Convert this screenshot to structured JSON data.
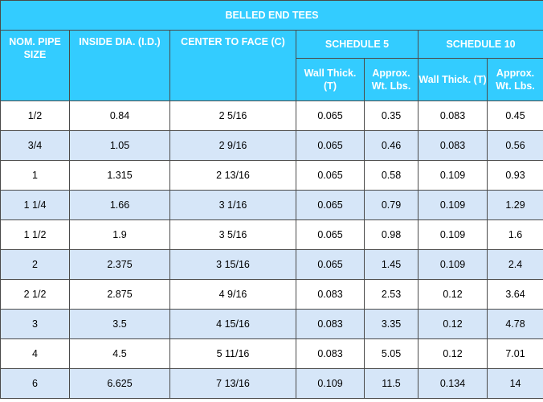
{
  "title": "BELLED END TEES",
  "headers": {
    "nom_pipe_size": "NOM. PIPE SIZE",
    "inside_dia": "INSIDE DIA. (I.D.)",
    "center_to_face": "CENTER TO FACE (C)",
    "schedule5": "SCHEDULE 5",
    "schedule10": "SCHEDULE 10",
    "wall_thick": "Wall Thick. (T)",
    "approx_wt": "Approx. Wt. Lbs."
  },
  "rows": [
    {
      "size": "1/2",
      "id": "0.84",
      "c": "2 5/16",
      "s5_t": "0.065",
      "s5_wt": "0.35",
      "s10_t": "0.083",
      "s10_wt": "0.45"
    },
    {
      "size": "3/4",
      "id": "1.05",
      "c": "2 9/16",
      "s5_t": "0.065",
      "s5_wt": "0.46",
      "s10_t": "0.083",
      "s10_wt": "0.56"
    },
    {
      "size": "1",
      "id": "1.315",
      "c": "2 13/16",
      "s5_t": "0.065",
      "s5_wt": "0.58",
      "s10_t": "0.109",
      "s10_wt": "0.93"
    },
    {
      "size": "1 1/4",
      "id": "1.66",
      "c": "3 1/16",
      "s5_t": "0.065",
      "s5_wt": "0.79",
      "s10_t": "0.109",
      "s10_wt": "1.29"
    },
    {
      "size": "1 1/2",
      "id": "1.9",
      "c": "3 5/16",
      "s5_t": "0.065",
      "s5_wt": "0.98",
      "s10_t": "0.109",
      "s10_wt": "1.6"
    },
    {
      "size": "2",
      "id": "2.375",
      "c": "3 15/16",
      "s5_t": "0.065",
      "s5_wt": "1.45",
      "s10_t": "0.109",
      "s10_wt": "2.4"
    },
    {
      "size": "2 1/2",
      "id": "2.875",
      "c": "4 9/16",
      "s5_t": "0.083",
      "s5_wt": "2.53",
      "s10_t": "0.12",
      "s10_wt": "3.64"
    },
    {
      "size": "3",
      "id": "3.5",
      "c": "4 15/16",
      "s5_t": "0.083",
      "s5_wt": "3.35",
      "s10_t": "0.12",
      "s10_wt": "4.78"
    },
    {
      "size": "4",
      "id": "4.5",
      "c": "5 11/16",
      "s5_t": "0.083",
      "s5_wt": "5.05",
      "s10_t": "0.12",
      "s10_wt": "7.01"
    },
    {
      "size": "6",
      "id": "6.625",
      "c": "7 13/16",
      "s5_t": "0.109",
      "s5_wt": "11.5",
      "s10_t": "0.134",
      "s10_wt": "14"
    }
  ],
  "colors": {
    "header_bg": "#33ccff",
    "header_text": "#ffffff",
    "row_alt_bg": "#d6e6f8",
    "border": "#4a4a4a"
  }
}
